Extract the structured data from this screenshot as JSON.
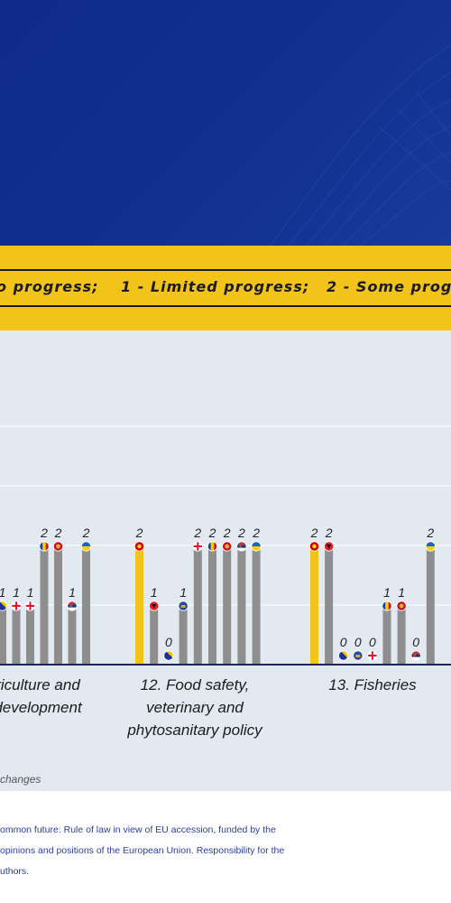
{
  "legend": {
    "items": [
      "o progress;",
      "1 - Limited progress;",
      "2 - Some prog"
    ]
  },
  "chart_data": {
    "type": "bar",
    "ylim": [
      0,
      2
    ],
    "groups": [
      {
        "label_lines": [
          "riculture and",
          "development"
        ],
        "bars": [
          {
            "value": 1,
            "color": "#8e8e8e",
            "flag": "bih"
          },
          {
            "value": 1,
            "color": "#8e8e8e",
            "flag": "geo"
          },
          {
            "value": 1,
            "color": "#8e8e8e",
            "flag": "geo-cross"
          },
          {
            "value": 2,
            "color": "#8e8e8e",
            "flag": "mda"
          },
          {
            "value": 2,
            "color": "#8e8e8e",
            "flag": "mne"
          },
          {
            "value": 1,
            "color": "#8e8e8e",
            "flag": "srb"
          },
          {
            "value": 2,
            "color": "#8e8e8e",
            "flag": "ukr"
          }
        ]
      },
      {
        "label_lines": [
          "12. Food safety,",
          "veterinary and",
          "phytosanitary policy"
        ],
        "bars": [
          {
            "value": 2,
            "color": "#f2c31b",
            "flag": "mkd"
          },
          {
            "value": 1,
            "color": "#8e8e8e",
            "flag": "alb"
          },
          {
            "value": 0,
            "color": "#8e8e8e",
            "flag": "bih"
          },
          {
            "value": 1,
            "color": "#8e8e8e",
            "flag": "xk"
          },
          {
            "value": 2,
            "color": "#8e8e8e",
            "flag": "geo"
          },
          {
            "value": 2,
            "color": "#8e8e8e",
            "flag": "mda"
          },
          {
            "value": 2,
            "color": "#8e8e8e",
            "flag": "mne"
          },
          {
            "value": 2,
            "color": "#8e8e8e",
            "flag": "srb"
          },
          {
            "value": 2,
            "color": "#8e8e8e",
            "flag": "ukr"
          }
        ]
      },
      {
        "label_lines": [
          "13. Fisheries"
        ],
        "bars": [
          {
            "value": 2,
            "color": "#f2c31b",
            "flag": "mkd"
          },
          {
            "value": 2,
            "color": "#8e8e8e",
            "flag": "alb"
          },
          {
            "value": 0,
            "color": "#8e8e8e",
            "flag": "bih"
          },
          {
            "value": 0,
            "color": "#8e8e8e",
            "flag": "xk"
          },
          {
            "value": 0,
            "color": "#8e8e8e",
            "flag": "geo"
          },
          {
            "value": 1,
            "color": "#8e8e8e",
            "flag": "mda"
          },
          {
            "value": 1,
            "color": "#8e8e8e",
            "flag": "mne"
          },
          {
            "value": 0,
            "color": "#8e8e8e",
            "flag": "srb"
          },
          {
            "value": 2,
            "color": "#8e8e8e",
            "flag": "ukr"
          }
        ]
      }
    ]
  },
  "footnote": "changes",
  "credits": [
    "ommon future: Rule of law in view of EU accession, funded by the",
    "opinions and positions of the European Union. Responsibility for the",
    "uthors."
  ],
  "colors": {
    "header_blue": "#12308f",
    "accent_yellow": "#f2c31b",
    "bar_gray": "#8e8e8e",
    "baseline": "#1d2660"
  }
}
